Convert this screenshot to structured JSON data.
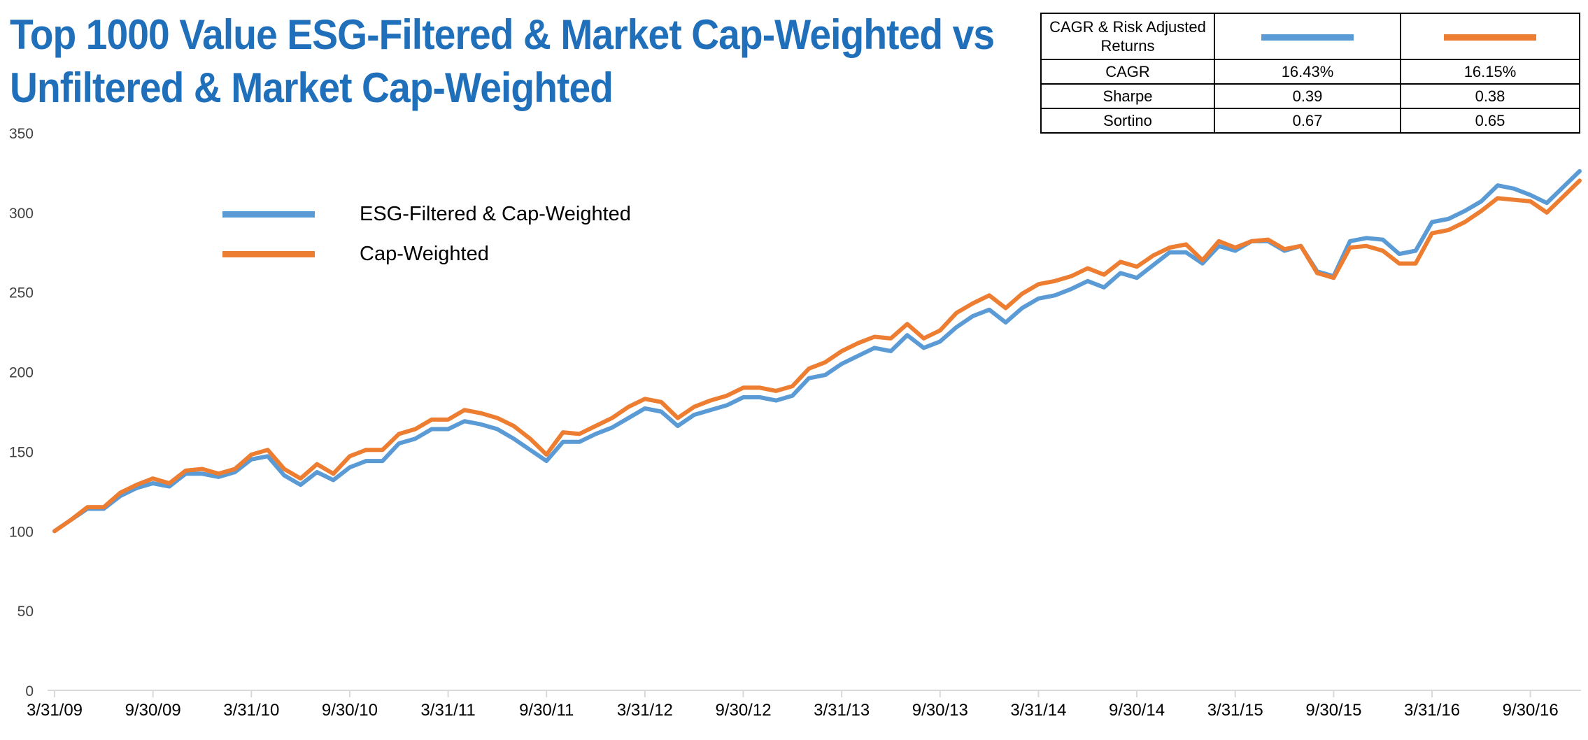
{
  "title": {
    "line1": "Top 1000 Value ESG-Filtered & Market Cap-Weighted vs",
    "line2": "Unfiltered & Market Cap-Weighted"
  },
  "colors": {
    "esg": "#5b9bd5",
    "cap": "#ed7d31",
    "axis": "#d9d9d9",
    "title": "#1f6fba"
  },
  "stats_table": {
    "header": "CAGR & Risk Adjusted Returns",
    "rows": [
      {
        "label": "CAGR",
        "esg": "16.43%",
        "cap": "16.15%"
      },
      {
        "label": "Sharpe",
        "esg": "0.39",
        "cap": "0.38"
      },
      {
        "label": "Sortino",
        "esg": "0.67",
        "cap": "0.65"
      }
    ]
  },
  "chart_data": {
    "type": "line",
    "ylim": [
      0,
      350
    ],
    "y_ticks": [
      "0",
      "50",
      "100",
      "150",
      "200",
      "250",
      "300",
      "350"
    ],
    "x_tick_labels": [
      "3/31/09",
      "9/30/09",
      "3/31/10",
      "9/30/10",
      "3/31/11",
      "9/30/11",
      "3/31/12",
      "9/30/12",
      "3/31/13",
      "9/30/13",
      "3/31/14",
      "9/30/14",
      "3/31/15",
      "9/30/15",
      "3/31/16",
      "9/30/16"
    ],
    "legend_position": "top-left",
    "series": [
      {
        "name": "ESG-Filtered & Cap-Weighted",
        "color": "#5b9bd5",
        "values": [
          100,
          107,
          114,
          114,
          122,
          127,
          130,
          128,
          136,
          136,
          134,
          137,
          145,
          147,
          135,
          129,
          137,
          132,
          140,
          144,
          144,
          155,
          158,
          164,
          164,
          169,
          167,
          164,
          158,
          151,
          144,
          156,
          156,
          161,
          165,
          171,
          177,
          175,
          166,
          173,
          176,
          179,
          184,
          184,
          182,
          185,
          196,
          198,
          205,
          210,
          215,
          213,
          223,
          215,
          219,
          228,
          235,
          239,
          231,
          240,
          246,
          248,
          252,
          257,
          253,
          262,
          259,
          267,
          275,
          275,
          268,
          279,
          276,
          282,
          282,
          276,
          279,
          263,
          260,
          282,
          284,
          283,
          274,
          276,
          294,
          296,
          301,
          307,
          317,
          315,
          311,
          306,
          316,
          326
        ]
      },
      {
        "name": "Cap-Weighted",
        "color": "#ed7d31",
        "values": [
          100,
          107,
          115,
          115,
          124,
          129,
          133,
          130,
          138,
          139,
          136,
          139,
          148,
          151,
          139,
          133,
          142,
          136,
          147,
          151,
          151,
          161,
          164,
          170,
          170,
          176,
          174,
          171,
          166,
          158,
          148,
          162,
          161,
          166,
          171,
          178,
          183,
          181,
          171,
          178,
          182,
          185,
          190,
          190,
          188,
          191,
          202,
          206,
          213,
          218,
          222,
          221,
          230,
          221,
          226,
          237,
          243,
          248,
          240,
          249,
          255,
          257,
          260,
          265,
          261,
          269,
          266,
          273,
          278,
          280,
          270,
          282,
          278,
          282,
          283,
          277,
          279,
          262,
          259,
          278,
          279,
          276,
          268,
          268,
          287,
          289,
          294,
          301,
          309,
          308,
          307,
          300,
          310,
          320
        ]
      }
    ]
  }
}
